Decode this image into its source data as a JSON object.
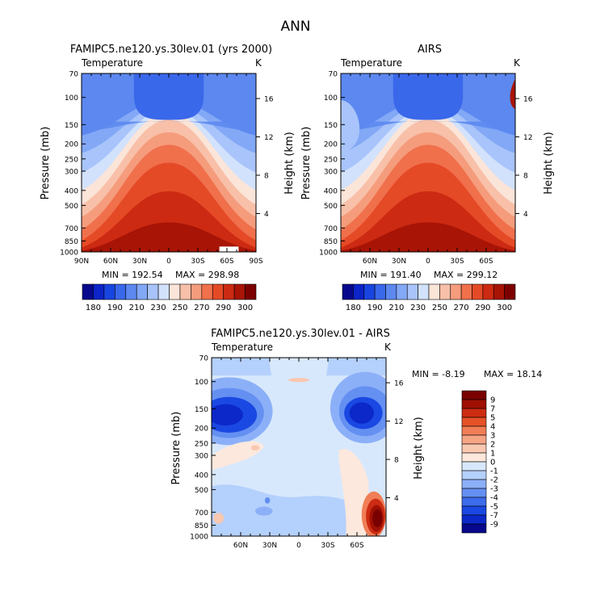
{
  "page_title": "ANN",
  "chart_data": [
    {
      "type": "heatmap",
      "id": "model",
      "title": "FAMIPC5.ne120.ys.30lev.01 (yrs 2000)",
      "field_label": "Temperature",
      "units": "K",
      "ylabel": "Pressure (mb)",
      "y2label": "Height (km)",
      "x_ticks": [
        "90N",
        "60N",
        "30N",
        "0",
        "30S",
        "60S",
        "90S"
      ],
      "y_ticks": [
        "70",
        "100",
        "150",
        "200",
        "250",
        "300",
        "400",
        "500",
        "700",
        "850",
        "1000"
      ],
      "y2_ticks": [
        "16",
        "12",
        "8",
        "4"
      ],
      "min_label": "MIN = 192.54",
      "max_label": "MAX = 298.98",
      "min": 192.54,
      "max": 298.98,
      "colorbar_labels": [
        "180",
        "190",
        "210",
        "230",
        "250",
        "270",
        "290",
        "300"
      ]
    },
    {
      "type": "heatmap",
      "id": "obs",
      "title": "AIRS",
      "field_label": "Temperature",
      "units": "K",
      "ylabel": "Pressure (mb)",
      "y2label": "Height (km)",
      "x_ticks": [
        "60N",
        "30N",
        "0",
        "30S",
        "60S"
      ],
      "y_ticks": [
        "70",
        "100",
        "150",
        "200",
        "250",
        "300",
        "400",
        "500",
        "700",
        "850",
        "1000"
      ],
      "y2_ticks": [
        "16",
        "12",
        "8",
        "4"
      ],
      "min_label": "MIN = 191.40",
      "max_label": "MAX = 299.12",
      "min": 191.4,
      "max": 299.12,
      "colorbar_labels": [
        "180",
        "190",
        "210",
        "230",
        "250",
        "270",
        "290",
        "300"
      ]
    },
    {
      "type": "heatmap",
      "id": "diff",
      "title": "FAMIPC5.ne120.ys.30lev.01 - AIRS",
      "field_label": "Temperature",
      "units": "K",
      "ylabel": "Pressure (mb)",
      "y2label": "Height (km)",
      "x_ticks": [
        "60N",
        "30N",
        "0",
        "30S",
        "60S"
      ],
      "y_ticks": [
        "70",
        "100",
        "150",
        "200",
        "250",
        "300",
        "400",
        "500",
        "700",
        "850",
        "1000"
      ],
      "y2_ticks": [
        "16",
        "12",
        "8",
        "4"
      ],
      "min_label": "MIN = -8.19",
      "max_label": "MAX = 18.14",
      "min": -8.19,
      "max": 18.14,
      "colorbar_labels": [
        "9",
        "7",
        "5",
        "4",
        "3",
        "2",
        "1",
        "0",
        "-1",
        "-2",
        "-3",
        "-4",
        "-5",
        "-7",
        "-9"
      ]
    }
  ],
  "colors": {
    "temp_scale": [
      "#08088c",
      "#0c24c8",
      "#1844e0",
      "#3a68ea",
      "#5c88f0",
      "#82a8f6",
      "#a8c4fa",
      "#d2e2fc",
      "#fbe4d8",
      "#f8c0a8",
      "#f59c7c",
      "#f0704c",
      "#e54a26",
      "#cc2a12",
      "#a81406",
      "#7c0000"
    ],
    "diff_scale": [
      "#08088c",
      "#0c28c8",
      "#1a48e2",
      "#3c6cec",
      "#6490f2",
      "#8cb0f8",
      "#b4d0fc",
      "#d8e8fc",
      "#fce8dc",
      "#f8c8b0",
      "#f5a484",
      "#f07e56",
      "#e65228",
      "#cc2c12",
      "#a01004",
      "#7a0000"
    ]
  }
}
